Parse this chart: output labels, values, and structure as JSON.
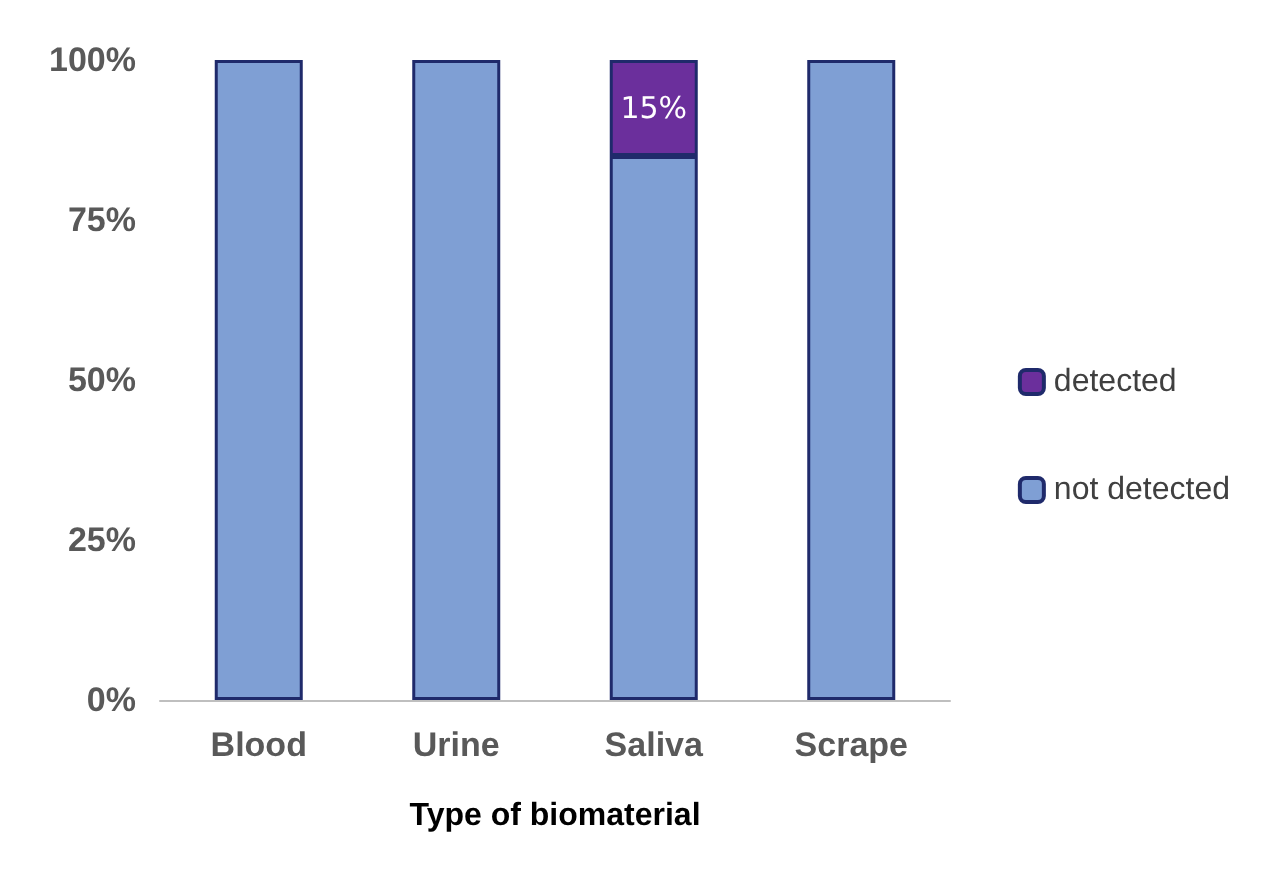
{
  "chart_data": {
    "type": "bar",
    "stacked": true,
    "xlabel": "Type of biomaterial",
    "categories": [
      "Blood",
      "Urine",
      "Saliva",
      "Scrape"
    ],
    "series": [
      {
        "name": "not detected",
        "color": "#7f9fd4",
        "values": [
          100,
          100,
          85,
          100
        ]
      },
      {
        "name": "detected",
        "color": "#6b2f9c",
        "values": [
          0,
          0,
          15,
          0
        ],
        "value_labels": [
          null,
          null,
          "15%",
          null
        ]
      }
    ],
    "ylim": [
      0,
      100
    ],
    "yticks": [
      {
        "value": 0,
        "label": "0%"
      },
      {
        "value": 25,
        "label": "25%"
      },
      {
        "value": 50,
        "label": "50%"
      },
      {
        "value": 75,
        "label": "75%"
      },
      {
        "value": 100,
        "label": "100%"
      }
    ],
    "grid": false,
    "legend": "right"
  }
}
